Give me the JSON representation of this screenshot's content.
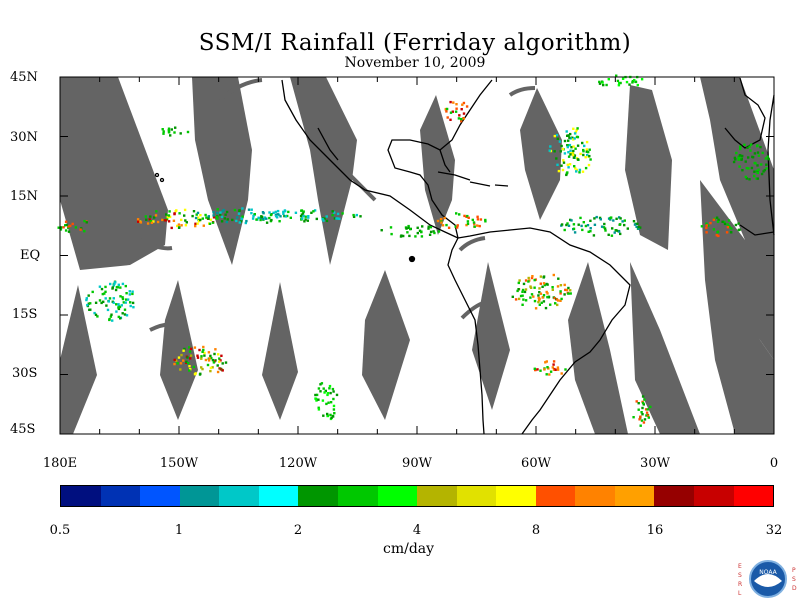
{
  "title": "SSM/I Rainfall (Ferriday algorithm)",
  "subtitle": "November 10, 2009",
  "lat_labels": [
    "45N",
    "30N",
    "15N",
    "EQ",
    "15S",
    "30S",
    "45S"
  ],
  "lon_labels": [
    "180E",
    "150W",
    "120W",
    "90W",
    "60W",
    "30W",
    "0"
  ],
  "colorbar": {
    "units": "cm/day",
    "tick_labels": [
      "0.5",
      "1",
      "2",
      "4",
      "8",
      "16",
      "32"
    ],
    "colors": [
      "#000f7f",
      "#0032b4",
      "#0055ff",
      "#009696",
      "#00c8c8",
      "#00ffff",
      "#009600",
      "#00c800",
      "#00ff00",
      "#b4b400",
      "#e1e100",
      "#ffff00",
      "#ff5000",
      "#ff8200",
      "#ffa000",
      "#960000",
      "#c80000",
      "#ff0000"
    ]
  },
  "map_colors": {
    "land_outline": "#000000",
    "no_data": "#646464"
  },
  "logo": {
    "left_letters": [
      "E",
      "S",
      "R",
      "L"
    ],
    "right_letters": [
      "P",
      "S",
      "D"
    ],
    "badge": "NOAA"
  }
}
